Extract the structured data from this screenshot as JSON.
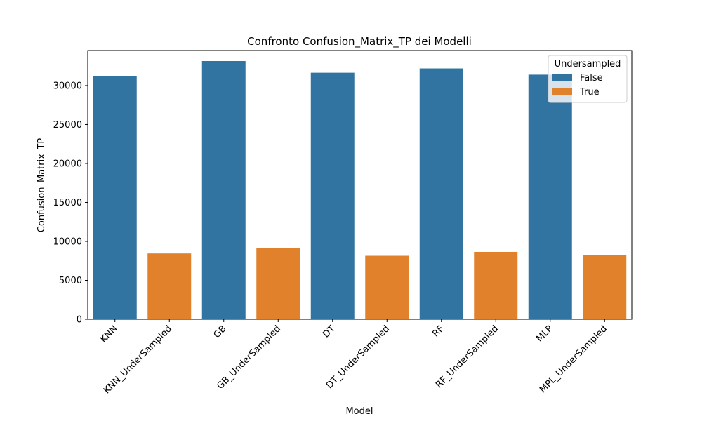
{
  "chart_data": {
    "type": "bar",
    "title": "Confronto Confusion_Matrix_TP dei Modelli",
    "xlabel": "Model",
    "ylabel": "Confusion_Matrix_TP",
    "ylim": [
      0,
      34500
    ],
    "yticks": [
      0,
      5000,
      10000,
      15000,
      20000,
      25000,
      30000
    ],
    "ytick_labels": [
      "0",
      "5000",
      "10000",
      "15000",
      "20000",
      "25000",
      "30000"
    ],
    "categories": [
      "KNN",
      "KNN_UnderSampled",
      "GB",
      "GB_UnderSampled",
      "DT",
      "DT_UnderSampled",
      "RF",
      "RF_UnderSampled",
      "MLP",
      "MPL_UnderSampled"
    ],
    "values": [
      31200,
      8450,
      33150,
      9150,
      31650,
      8150,
      32200,
      8650,
      31400,
      8250
    ],
    "groups": [
      "False",
      "True",
      "False",
      "True",
      "False",
      "True",
      "False",
      "True",
      "False",
      "True"
    ],
    "grid": false,
    "legend": {
      "title": "Undersampled",
      "placement": "top-right",
      "entries": [
        {
          "label": "False",
          "color": "#3274a1"
        },
        {
          "label": "True",
          "color": "#e1812c"
        }
      ]
    }
  }
}
